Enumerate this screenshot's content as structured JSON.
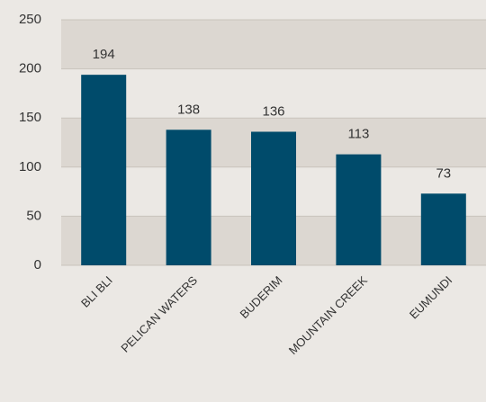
{
  "chart_data": {
    "type": "bar",
    "categories": [
      "BLI BLI",
      "PELICAN WATERS",
      "BUDERIM",
      "MOUNTAIN CREEK",
      "EUMUNDI"
    ],
    "values": [
      194,
      138,
      136,
      113,
      73
    ],
    "color": "#004b6b",
    "ylim": [
      0,
      250
    ],
    "yticks": [
      0,
      50,
      100,
      150,
      200,
      250
    ],
    "grid": true
  }
}
